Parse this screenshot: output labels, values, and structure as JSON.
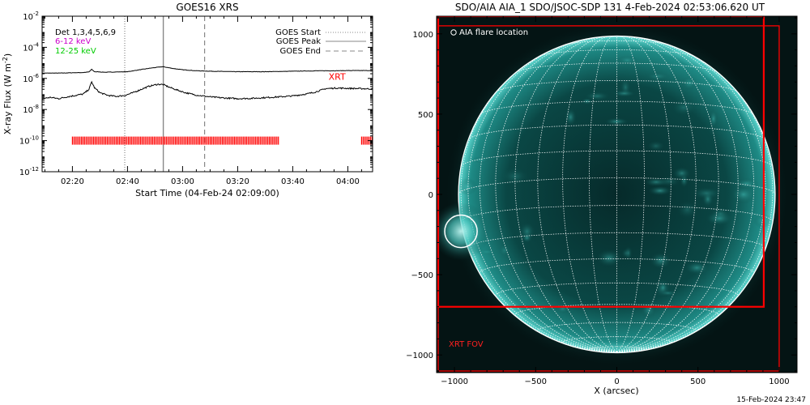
{
  "footer_timestamp": "15-Feb-2024 23:47",
  "chart_data": [
    {
      "type": "line",
      "title": "GOES16 XRS",
      "xlabel": "Start Time (04-Feb-24 02:09:00)",
      "ylabel_main": "X-ray Flux (W m",
      "ylabel_sup": "-2",
      "ylabel_close": ")",
      "y_scale": "log",
      "ylim": [
        1e-12,
        0.01
      ],
      "xlim": [
        "02:09",
        "04:09"
      ],
      "x_ticks": [
        "02:20",
        "02:40",
        "03:00",
        "03:20",
        "03:40",
        "04:00"
      ],
      "y_ticks": [
        {
          "value": 1e-12,
          "base": "10",
          "exp": "-12"
        },
        {
          "value": 1e-10,
          "base": "10",
          "exp": "-10"
        },
        {
          "value": 1e-08,
          "base": "10",
          "exp": "-8"
        },
        {
          "value": 1e-06,
          "base": "10",
          "exp": "-6"
        },
        {
          "value": 0.0001,
          "base": "10",
          "exp": "-4"
        },
        {
          "value": 0.01,
          "base": "10",
          "exp": "-2"
        }
      ],
      "legend_left": [
        {
          "text": "Det 1,3,4,5,6,9",
          "color": "#000000"
        },
        {
          "text": "6-12 keV",
          "color": "#cc00cc"
        },
        {
          "text": "12-25 keV",
          "color": "#00cc00"
        }
      ],
      "legend_right": [
        {
          "label": "GOES Start",
          "style": "dotted"
        },
        {
          "label": "GOES Peak",
          "style": "solid"
        },
        {
          "label": "GOES End",
          "style": "dashed"
        }
      ],
      "event_lines": [
        {
          "name": "GOES Start",
          "time": "02:39",
          "style": "dotted",
          "color": "#888888"
        },
        {
          "name": "GOES Peak",
          "time": "02:53",
          "style": "solid",
          "color": "#888888"
        },
        {
          "name": "GOES End",
          "time": "03:08",
          "style": "dashed",
          "color": "#888888"
        }
      ],
      "series": [
        {
          "channel": "long",
          "color": "#000000",
          "x": [
            "02:09",
            "02:15",
            "02:20",
            "02:24",
            "02:26",
            "02:27",
            "02:28",
            "02:32",
            "02:36",
            "02:40",
            "02:44",
            "02:48",
            "02:52",
            "02:53",
            "02:56",
            "03:00",
            "03:05",
            "03:10",
            "03:15",
            "03:20",
            "03:25",
            "03:30",
            "03:35",
            "03:40",
            "03:45",
            "03:50",
            "03:55",
            "04:00",
            "04:05",
            "04:09"
          ],
          "y": [
            2.2e-06,
            2.2e-06,
            2.3e-06,
            2.4e-06,
            2.6e-06,
            3.8e-06,
            2.7e-06,
            2.5e-06,
            2.6e-06,
            2.7e-06,
            3.5e-06,
            4.5e-06,
            5.5e-06,
            5.6e-06,
            4.5e-06,
            3.6e-06,
            3.1e-06,
            2.9e-06,
            2.8e-06,
            2.7e-06,
            2.7e-06,
            2.7e-06,
            2.8e-06,
            2.9e-06,
            3e-06,
            3.1e-06,
            3.1e-06,
            3.2e-06,
            3.2e-06,
            3.2e-06
          ]
        },
        {
          "channel": "short",
          "color": "#000000",
          "x": [
            "02:09",
            "02:12",
            "02:15",
            "02:18",
            "02:21",
            "02:24",
            "02:26",
            "02:27",
            "02:28",
            "02:30",
            "02:33",
            "02:36",
            "02:39",
            "02:42",
            "02:45",
            "02:48",
            "02:51",
            "02:53",
            "02:55",
            "02:58",
            "03:01",
            "03:05",
            "03:10",
            "03:15",
            "03:20",
            "03:25",
            "03:30",
            "03:35",
            "03:40",
            "03:45",
            "03:48",
            "03:52",
            "03:56",
            "04:00",
            "04:05",
            "04:09"
          ],
          "y": [
            5e-08,
            6e-08,
            5e-08,
            6.5e-08,
            8e-08,
            1e-07,
            2e-07,
            6e-07,
            2.5e-07,
            1.2e-07,
            8e-08,
            7e-08,
            8e-08,
            1.2e-07,
            2e-07,
            3.2e-07,
            4.2e-07,
            4e-07,
            2.8e-07,
            1.8e-07,
            1.2e-07,
            8.5e-08,
            6.5e-08,
            5.5e-08,
            5e-08,
            5.2e-08,
            5.8e-08,
            6.5e-08,
            7.5e-08,
            1e-07,
            1.3e-07,
            2.2e-07,
            2.4e-07,
            2.3e-07,
            2.2e-07,
            2.1e-07
          ]
        }
      ],
      "annotations": [
        {
          "text": "XRT",
          "color": "#ff0000",
          "x": "03:53",
          "y": 8e-07
        }
      ],
      "xrt_coverage": {
        "color": "#ff0000",
        "level": 1e-10,
        "intervals": [
          [
            "02:20",
            "03:35"
          ],
          [
            "04:05",
            "04:09"
          ]
        ]
      }
    },
    {
      "type": "image",
      "title": "SDO/AIA AIA_1 SDO/JSOC-SDP 131  4-Feb-2024 02:53:06.620 UT",
      "xlabel": "X (arcsec)",
      "xlim": [
        -1110,
        1110
      ],
      "ylim": [
        -1110,
        1110
      ],
      "x_ticks": [
        -1000,
        -500,
        0,
        500,
        1000
      ],
      "y_ticks": [
        -1000,
        -500,
        0,
        500,
        1000
      ],
      "x_tick_labels": [
        "−1000",
        "−500",
        "0",
        "500",
        "1000"
      ],
      "y_tick_labels": [
        "−1000",
        "−500",
        "0",
        "500",
        "1000"
      ],
      "solar_radius_arcsec": 975,
      "b0_deg": -6,
      "grid_spacing_deg": 10,
      "legend_entry": "AIA flare location",
      "flare_location": {
        "x": -960,
        "y": -230,
        "radius": 100
      },
      "xrt_fov_label": "XRT FOV",
      "xrt_fov_color": "#ff0000",
      "xrt_fovs": [
        {
          "x0": -1100,
          "x1": 1000,
          "y0": -1100,
          "y1": 1050
        },
        {
          "x0": -1100,
          "x1": 905,
          "y0": -700,
          "y1": 1110
        }
      ],
      "colors": {
        "disk": "#0b5351",
        "limb": "#66e0d8",
        "grid": "#ffffff",
        "background": "#041414"
      }
    }
  ]
}
